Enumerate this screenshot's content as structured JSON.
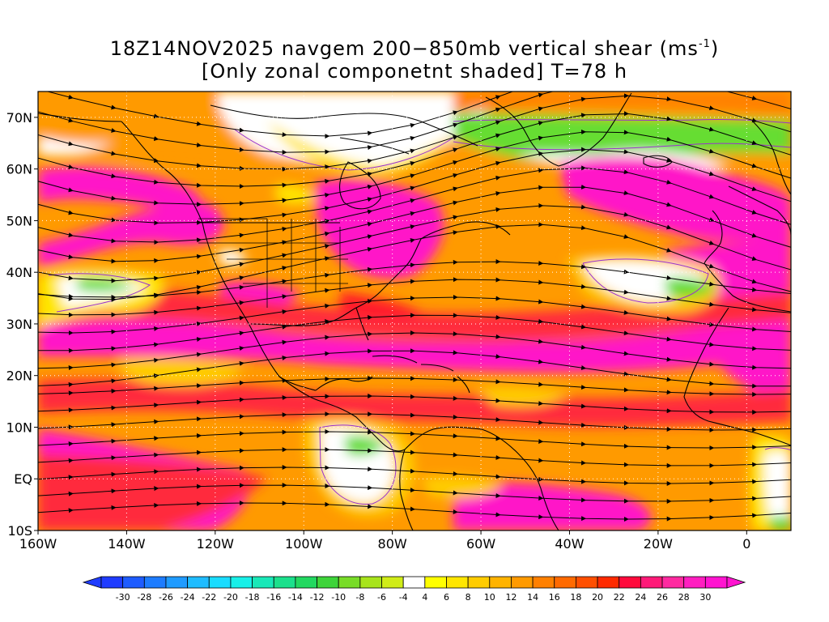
{
  "title": {
    "main": "18Z14NOV2025 navgem 200−850mb vertical shear (ms",
    "units_sup": "-1",
    "units_close": ")",
    "subtitle": "[Only zonal componetnt shaded] T=78 h"
  },
  "map": {
    "projection": "lat-lon",
    "lon_range": [
      -160,
      10
    ],
    "lat_range": [
      -10,
      75
    ],
    "lat_labels": [
      {
        "lat": 70,
        "text": "70N"
      },
      {
        "lat": 60,
        "text": "60N"
      },
      {
        "lat": 50,
        "text": "50N"
      },
      {
        "lat": 40,
        "text": "40N"
      },
      {
        "lat": 30,
        "text": "30N"
      },
      {
        "lat": 20,
        "text": "20N"
      },
      {
        "lat": 10,
        "text": "10N"
      },
      {
        "lat": 0,
        "text": "EQ"
      },
      {
        "lat": -10,
        "text": "10S"
      }
    ],
    "lon_labels": [
      {
        "lon": -160,
        "text": "160W"
      },
      {
        "lon": -140,
        "text": "140W"
      },
      {
        "lon": -120,
        "text": "120W"
      },
      {
        "lon": -100,
        "text": "100W"
      },
      {
        "lon": -80,
        "text": "80W"
      },
      {
        "lon": -60,
        "text": "60W"
      },
      {
        "lon": -40,
        "text": "40W"
      },
      {
        "lon": -20,
        "text": "20W"
      },
      {
        "lon": 0,
        "text": "0"
      }
    ],
    "grid": "dotted",
    "streamlines": true
  },
  "colorbar": {
    "labels": [
      "-30",
      "-28",
      "-26",
      "-24",
      "-22",
      "-20",
      "-18",
      "-16",
      "-14",
      "-12",
      "-10",
      "-8",
      "-6",
      "-4",
      "4",
      "6",
      "8",
      "10",
      "12",
      "14",
      "16",
      "18",
      "20",
      "22",
      "24",
      "26",
      "28",
      "30"
    ],
    "colors": [
      "#1f3cff",
      "#1e5cff",
      "#1d7cff",
      "#1f9bff",
      "#1fbcff",
      "#19dcff",
      "#18f0e8",
      "#19e8b8",
      "#1be08c",
      "#22d860",
      "#3ed43a",
      "#78dc28",
      "#a8e41c",
      "#d0ec18",
      "#ffffff",
      "#ffff00",
      "#ffe600",
      "#ffcc00",
      "#ffb300",
      "#ff9a00",
      "#ff8000",
      "#ff6a00",
      "#ff4f00",
      "#ff2a00",
      "#ff0a3c",
      "#ff1a78",
      "#ff2aa0",
      "#ff1ec0",
      "#ff14d0"
    ]
  },
  "colors": {
    "magenta": "#ff14c8",
    "red": "#ff1e3c",
    "orange": "#ff8000",
    "yellow": "#ffcc00",
    "green": "#66dd33",
    "coast": "#000000",
    "zero_contour": "#9933cc"
  }
}
